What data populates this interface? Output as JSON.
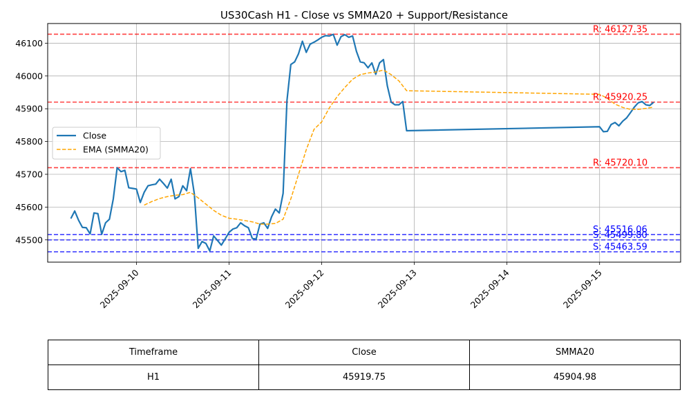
{
  "chart_data": {
    "type": "line",
    "title": "US30Cash H1 - Close vs SMMA20 + Support/Resistance",
    "xlabel": "",
    "ylabel": "",
    "x_ticks": [
      "2025-09-10",
      "2025-09-11",
      "2025-09-12",
      "2025-09-13",
      "2025-09-14",
      "2025-09-15"
    ],
    "y_ticks": [
      "45500",
      "45600",
      "45700",
      "45800",
      "45900",
      "46000",
      "46100"
    ],
    "ylim": [
      45432,
      46160
    ],
    "xlim": [
      "2025-09-09 01:00",
      "2025-09-15 21:00"
    ],
    "grid": true,
    "legend_position": "center-left",
    "series": [
      {
        "name": "Close",
        "style": "solid",
        "color": "#1f77b4",
        "points": [
          [
            "2025-09-09 07:00",
            45565
          ],
          [
            "2025-09-09 08:00",
            45588
          ],
          [
            "2025-09-09 09:00",
            45560
          ],
          [
            "2025-09-09 10:00",
            45538
          ],
          [
            "2025-09-09 11:00",
            45537
          ],
          [
            "2025-09-09 12:00",
            45518
          ],
          [
            "2025-09-09 13:00",
            45582
          ],
          [
            "2025-09-09 14:00",
            45580
          ],
          [
            "2025-09-09 15:00",
            45517
          ],
          [
            "2025-09-09 16:00",
            45552
          ],
          [
            "2025-09-09 17:00",
            45563
          ],
          [
            "2025-09-09 18:00",
            45625
          ],
          [
            "2025-09-09 19:00",
            45720
          ],
          [
            "2025-09-09 20:00",
            45708
          ],
          [
            "2025-09-09 21:00",
            45712
          ],
          [
            "2025-09-09 22:00",
            45659
          ],
          [
            "2025-09-09 23:00",
            45657
          ],
          [
            "2025-09-10 00:00",
            45655
          ],
          [
            "2025-09-10 01:00",
            45614
          ],
          [
            "2025-09-10 02:00",
            45645
          ],
          [
            "2025-09-10 03:00",
            45665
          ],
          [
            "2025-09-10 04:00",
            45668
          ],
          [
            "2025-09-10 05:00",
            45670
          ],
          [
            "2025-09-10 06:00",
            45685
          ],
          [
            "2025-09-10 07:00",
            45672
          ],
          [
            "2025-09-10 08:00",
            45658
          ],
          [
            "2025-09-10 09:00",
            45685
          ],
          [
            "2025-09-10 10:00",
            45625
          ],
          [
            "2025-09-10 11:00",
            45632
          ],
          [
            "2025-09-10 12:00",
            45665
          ],
          [
            "2025-09-10 13:00",
            45650
          ],
          [
            "2025-09-10 14:00",
            45717
          ],
          [
            "2025-09-10 15:00",
            45640
          ],
          [
            "2025-09-10 16:00",
            45474
          ],
          [
            "2025-09-10 17:00",
            45495
          ],
          [
            "2025-09-10 18:00",
            45489
          ],
          [
            "2025-09-10 19:00",
            45466
          ],
          [
            "2025-09-10 20:00",
            45512
          ],
          [
            "2025-09-10 21:00",
            45498
          ],
          [
            "2025-09-10 22:00",
            45484
          ],
          [
            "2025-09-10 23:00",
            45503
          ],
          [
            "2025-09-11 00:00",
            45523
          ],
          [
            "2025-09-11 01:00",
            45533
          ],
          [
            "2025-09-11 02:00",
            45537
          ],
          [
            "2025-09-11 03:00",
            45552
          ],
          [
            "2025-09-11 04:00",
            45543
          ],
          [
            "2025-09-11 05:00",
            45537
          ],
          [
            "2025-09-11 06:00",
            45505
          ],
          [
            "2025-09-11 07:00",
            45502
          ],
          [
            "2025-09-11 08:00",
            45548
          ],
          [
            "2025-09-11 09:00",
            45552
          ],
          [
            "2025-09-11 10:00",
            45535
          ],
          [
            "2025-09-11 11:00",
            45570
          ],
          [
            "2025-09-11 12:00",
            45594
          ],
          [
            "2025-09-11 13:00",
            45582
          ],
          [
            "2025-09-11 14:00",
            45642
          ],
          [
            "2025-09-11 15:00",
            45925
          ],
          [
            "2025-09-11 16:00",
            46035
          ],
          [
            "2025-09-11 17:00",
            46043
          ],
          [
            "2025-09-11 18:00",
            46068
          ],
          [
            "2025-09-11 19:00",
            46106
          ],
          [
            "2025-09-11 20:00",
            46072
          ],
          [
            "2025-09-11 21:00",
            46097
          ],
          [
            "2025-09-11 22:00",
            46103
          ],
          [
            "2025-09-11 23:00",
            46110
          ],
          [
            "2025-09-12 00:00",
            46118
          ],
          [
            "2025-09-12 01:00",
            46123
          ],
          [
            "2025-09-12 02:00",
            46122
          ],
          [
            "2025-09-12 03:00",
            46127
          ],
          [
            "2025-09-12 04:00",
            46094
          ],
          [
            "2025-09-12 05:00",
            46120
          ],
          [
            "2025-09-12 06:00",
            46126
          ],
          [
            "2025-09-12 07:00",
            46118
          ],
          [
            "2025-09-12 08:00",
            46122
          ],
          [
            "2025-09-12 09:00",
            46075
          ],
          [
            "2025-09-12 10:00",
            46043
          ],
          [
            "2025-09-12 11:00",
            46040
          ],
          [
            "2025-09-12 12:00",
            46025
          ],
          [
            "2025-09-12 13:00",
            46040
          ],
          [
            "2025-09-12 14:00",
            46005
          ],
          [
            "2025-09-12 15:00",
            46040
          ],
          [
            "2025-09-12 16:00",
            46050
          ],
          [
            "2025-09-12 17:00",
            45970
          ],
          [
            "2025-09-12 18:00",
            45920
          ],
          [
            "2025-09-12 19:00",
            45912
          ],
          [
            "2025-09-12 20:00",
            45912
          ],
          [
            "2025-09-12 21:00",
            45922
          ],
          [
            "2025-09-12 22:00",
            45833
          ],
          [
            "2025-09-15 00:00",
            45845
          ],
          [
            "2025-09-15 01:00",
            45830
          ],
          [
            "2025-09-15 02:00",
            45831
          ],
          [
            "2025-09-15 03:00",
            45852
          ],
          [
            "2025-09-15 04:00",
            45858
          ],
          [
            "2025-09-15 05:00",
            45848
          ],
          [
            "2025-09-15 06:00",
            45862
          ],
          [
            "2025-09-15 07:00",
            45872
          ],
          [
            "2025-09-15 08:00",
            45888
          ],
          [
            "2025-09-15 09:00",
            45905
          ],
          [
            "2025-09-15 10:00",
            45918
          ],
          [
            "2025-09-15 11:00",
            45922
          ],
          [
            "2025-09-15 12:00",
            45912
          ],
          [
            "2025-09-15 13:00",
            45910
          ],
          [
            "2025-09-15 14:00",
            45919.75
          ]
        ]
      },
      {
        "name": "EMA (SMMA20)",
        "style": "dashed",
        "color": "#ffa500",
        "points": [
          [
            "2025-09-10 02:00",
            45606
          ],
          [
            "2025-09-10 04:00",
            45617
          ],
          [
            "2025-09-10 06:00",
            45626
          ],
          [
            "2025-09-10 08:00",
            45632
          ],
          [
            "2025-09-10 10:00",
            45636
          ],
          [
            "2025-09-10 12:00",
            45638
          ],
          [
            "2025-09-10 14:00",
            45645
          ],
          [
            "2025-09-10 16:00",
            45628
          ],
          [
            "2025-09-10 18:00",
            45609
          ],
          [
            "2025-09-10 20:00",
            45590
          ],
          [
            "2025-09-10 22:00",
            45575
          ],
          [
            "2025-09-11 00:00",
            45566
          ],
          [
            "2025-09-11 02:00",
            45563
          ],
          [
            "2025-09-11 04:00",
            45559
          ],
          [
            "2025-09-11 06:00",
            45555
          ],
          [
            "2025-09-11 08:00",
            45548
          ],
          [
            "2025-09-11 10:00",
            45548
          ],
          [
            "2025-09-11 12:00",
            45550
          ],
          [
            "2025-09-11 14:00",
            45563
          ],
          [
            "2025-09-11 16:00",
            45625
          ],
          [
            "2025-09-11 18:00",
            45700
          ],
          [
            "2025-09-11 20:00",
            45775
          ],
          [
            "2025-09-11 22:00",
            45837
          ],
          [
            "2025-09-12 00:00",
            45860
          ],
          [
            "2025-09-12 02:00",
            45903
          ],
          [
            "2025-09-12 04:00",
            45937
          ],
          [
            "2025-09-12 06:00",
            45965
          ],
          [
            "2025-09-12 08:00",
            45990
          ],
          [
            "2025-09-12 10:00",
            46004
          ],
          [
            "2025-09-12 12:00",
            46009
          ],
          [
            "2025-09-12 14:00",
            46012
          ],
          [
            "2025-09-12 16:00",
            46018
          ],
          [
            "2025-09-12 18:00",
            46004
          ],
          [
            "2025-09-12 20:00",
            45985
          ],
          [
            "2025-09-12 22:00",
            45955
          ],
          [
            "2025-09-15 00:00",
            45944
          ],
          [
            "2025-09-15 02:00",
            45932
          ],
          [
            "2025-09-15 04:00",
            45914
          ],
          [
            "2025-09-15 06:00",
            45904
          ],
          [
            "2025-09-15 08:00",
            45898
          ],
          [
            "2025-09-15 10:00",
            45898
          ],
          [
            "2025-09-15 12:00",
            45901
          ],
          [
            "2025-09-15 14:00",
            45904.98
          ]
        ]
      }
    ],
    "reference_lines": [
      {
        "kind": "resistance",
        "value": 46127.35,
        "label": "R: 46127.35",
        "color": "#ff0000"
      },
      {
        "kind": "resistance",
        "value": 45920.25,
        "label": "R: 45920.25",
        "color": "#ff0000"
      },
      {
        "kind": "resistance",
        "value": 45720.1,
        "label": "R: 45720.10",
        "color": "#ff0000"
      },
      {
        "kind": "support",
        "value": 45516.06,
        "label": "S: 45516.06",
        "color": "#0000ff"
      },
      {
        "kind": "support",
        "value": 45499.8,
        "label": "S: 45499.80",
        "color": "#0000ff"
      },
      {
        "kind": "support",
        "value": 45463.59,
        "label": "S: 45463.59",
        "color": "#0000ff"
      }
    ]
  },
  "table": {
    "headers": [
      "Timeframe",
      "Close",
      "SMMA20"
    ],
    "row": [
      "H1",
      "45919.75",
      "45904.98"
    ]
  }
}
